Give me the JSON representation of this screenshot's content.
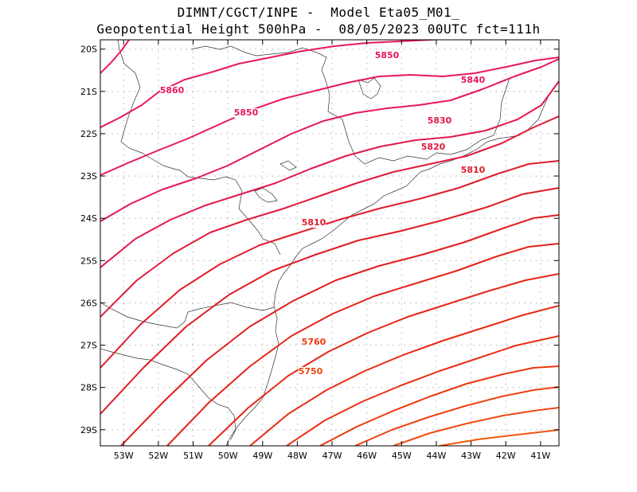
{
  "title": {
    "line1": "DIMNT/CGCT/INPE -  Model Eta05_M01_",
    "line2": "Geopotential Height 500hPa -  08/05/2023 00UTC fct=111h"
  },
  "map": {
    "lon_range": [
      -53.67,
      -40.47
    ],
    "lat_range": [
      -29.38,
      -19.78
    ],
    "lat_ticks": [
      {
        "value": -20,
        "label": "20S"
      },
      {
        "value": -21,
        "label": "21S"
      },
      {
        "value": -22,
        "label": "22S"
      },
      {
        "value": -23,
        "label": "23S"
      },
      {
        "value": -24,
        "label": "24S"
      },
      {
        "value": -25,
        "label": "25S"
      },
      {
        "value": -26,
        "label": "26S"
      },
      {
        "value": -27,
        "label": "27S"
      },
      {
        "value": -28,
        "label": "28S"
      },
      {
        "value": -29,
        "label": "29S"
      }
    ],
    "lon_ticks": [
      {
        "value": -53,
        "label": "53W"
      },
      {
        "value": -52,
        "label": "52W"
      },
      {
        "value": -51,
        "label": "51W"
      },
      {
        "value": -50,
        "label": "50W"
      },
      {
        "value": -49,
        "label": "49W"
      },
      {
        "value": -48,
        "label": "48W"
      },
      {
        "value": -47,
        "label": "47W"
      },
      {
        "value": -46,
        "label": "46W"
      },
      {
        "value": -45,
        "label": "45W"
      },
      {
        "value": -44,
        "label": "44W"
      },
      {
        "value": -43,
        "label": "43W"
      },
      {
        "value": -42,
        "label": "42W"
      },
      {
        "value": -41,
        "label": "41W"
      }
    ],
    "grid": true,
    "contour_labels": [
      {
        "text": "5850",
        "color": "#e8185a"
      },
      {
        "text": "5840",
        "color": "#e8185a"
      },
      {
        "text": "5860",
        "color": "#e8185a"
      },
      {
        "text": "5850",
        "color": "#e8185a"
      },
      {
        "text": "5830",
        "color": "#e3184a"
      },
      {
        "text": "5820",
        "color": "#e21a3c"
      },
      {
        "text": "5810",
        "color": "#e01c2c"
      },
      {
        "text": "5810",
        "color": "#e01c2c"
      },
      {
        "text": "5760",
        "color": "#ee3a10"
      },
      {
        "text": "5750",
        "color": "#ee4410"
      }
    ]
  }
}
